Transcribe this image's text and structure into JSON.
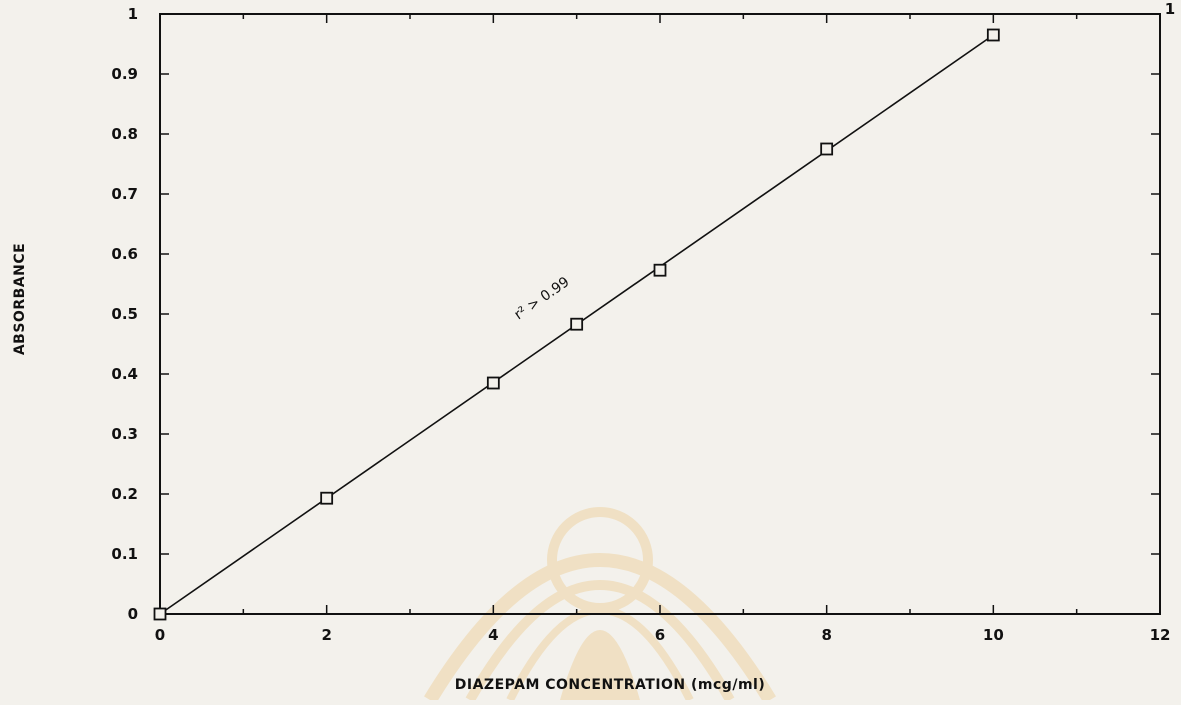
{
  "chart_data": {
    "type": "scatter",
    "title": "",
    "xlabel": "DIAZEPAM CONCENTRATION (mcg/ml)",
    "ylabel": "ABSORBANCE",
    "xlim": [
      0,
      12
    ],
    "ylim": [
      0,
      1
    ],
    "x_ticks": [
      "0",
      "2",
      "4",
      "6",
      "8",
      "10",
      "12"
    ],
    "y_ticks": [
      "0",
      "0.1",
      "0.2",
      "0.3",
      "0.4",
      "0.5",
      "0.6",
      "0.7",
      "0.8",
      "0.9",
      "1"
    ],
    "grid": false,
    "legend": "none",
    "series": [
      {
        "marker": "open-square",
        "points": [
          {
            "x": 0,
            "y": 0.0
          },
          {
            "x": 2,
            "y": 0.193
          },
          {
            "x": 4,
            "y": 0.385
          },
          {
            "x": 5,
            "y": 0.483
          },
          {
            "x": 6,
            "y": 0.573
          },
          {
            "x": 8,
            "y": 0.775
          },
          {
            "x": 10,
            "y": 0.965
          }
        ]
      }
    ],
    "fit_line": {
      "x": [
        0,
        10
      ],
      "y": [
        0.0,
        0.965
      ]
    },
    "annotations": [
      {
        "text": "r² > 0.99",
        "x": 4.3,
        "y": 0.49
      }
    ],
    "page_mark": "1",
    "colors": {
      "ink": "#111111",
      "paper": "#f3f1ec",
      "watermark": "#e6a93a"
    }
  }
}
